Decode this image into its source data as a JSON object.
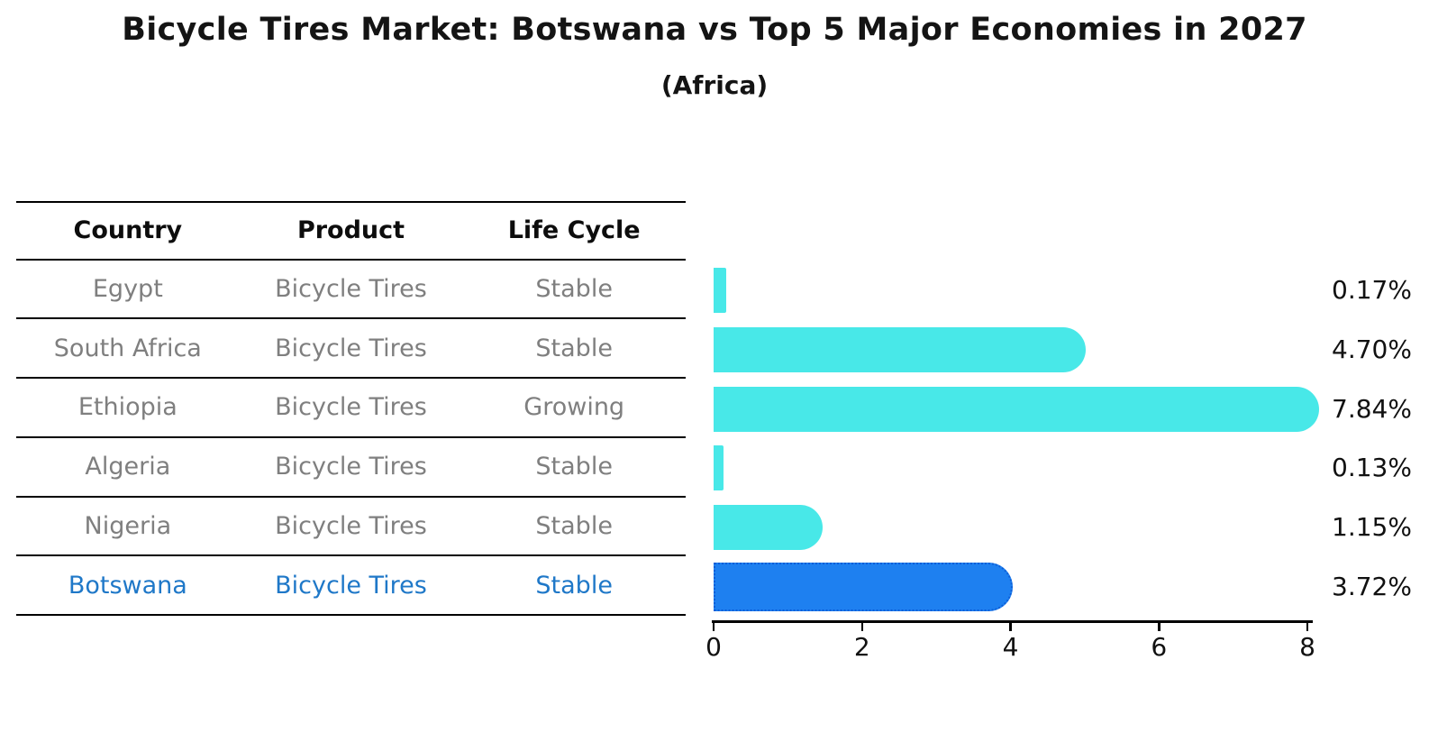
{
  "title": "Bicycle Tires Market: Botswana vs Top 5 Major Economies in 2027",
  "subtitle": "(Africa)",
  "table": {
    "headers": [
      "Country",
      "Product",
      "Life Cycle"
    ],
    "rows": [
      {
        "country": "Egypt",
        "product": "Bicycle Tires",
        "life_cycle": "Stable",
        "highlighted": false
      },
      {
        "country": "South Africa",
        "product": "Bicycle Tires",
        "life_cycle": "Stable",
        "highlighted": false
      },
      {
        "country": "Ethiopia",
        "product": "Bicycle Tires",
        "life_cycle": "Growing",
        "highlighted": false
      },
      {
        "country": "Algeria",
        "product": "Bicycle Tires",
        "life_cycle": "Stable",
        "highlighted": false
      },
      {
        "country": "Nigeria",
        "product": "Bicycle Tires",
        "life_cycle": "Stable",
        "highlighted": false
      },
      {
        "country": "Botswana",
        "product": "Bicycle Tires",
        "life_cycle": "Stable",
        "highlighted": true
      }
    ]
  },
  "chart_data": {
    "type": "bar",
    "orientation": "horizontal",
    "title": "Bicycle Tires Market: Botswana vs Top 5 Major Economies in 2027",
    "subtitle": "(Africa)",
    "categories": [
      "Egypt",
      "South Africa",
      "Ethiopia",
      "Algeria",
      "Nigeria",
      "Botswana"
    ],
    "values": [
      0.17,
      4.7,
      7.84,
      0.13,
      1.15,
      3.72
    ],
    "value_labels": [
      "0.17%",
      "4.70%",
      "7.84%",
      "0.13%",
      "1.15%",
      "3.72%"
    ],
    "xlabel": "",
    "ylabel": "",
    "xlim": [
      0,
      8
    ],
    "xticks": [
      0,
      2,
      4,
      6,
      8
    ],
    "grid": false,
    "legend": false,
    "bar_color": "#48e8e8",
    "highlight_index": 5,
    "highlight_bar_color": "#1e80f0",
    "highlight_border_color": "#0c5ed8",
    "highlight_text_color": "#1f78c8"
  }
}
